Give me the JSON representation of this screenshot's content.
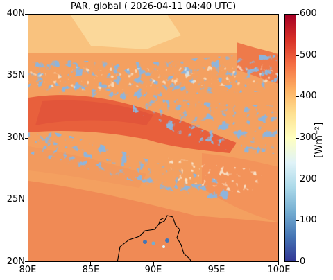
{
  "title": "PAR, global ( 2026-04-11 04:40 UTC)",
  "map": {
    "lat_labels": [
      "40N",
      "35N",
      "30N",
      "25N",
      "20N"
    ],
    "lat_values": [
      40,
      35,
      30,
      25,
      20
    ],
    "lon_labels": [
      "80E",
      "85E",
      "90E",
      "95E",
      "100E"
    ],
    "lon_values": [
      80,
      85,
      90,
      95,
      100
    ],
    "extent": {
      "lon_min": 80,
      "lon_max": 100,
      "lat_min": 20,
      "lat_max": 40
    }
  },
  "colorbar": {
    "label": "[Wm⁻²]",
    "ticks": [
      "600",
      "500",
      "400",
      "300",
      "200",
      "100",
      "0"
    ],
    "tick_values": [
      600,
      500,
      400,
      300,
      200,
      100,
      0
    ],
    "range": [
      0,
      600
    ],
    "colormap": "RdYlBu_r",
    "colors": [
      "#313695",
      "#4575b4",
      "#74add1",
      "#abd9e9",
      "#e0f3f8",
      "#ffffbf",
      "#fee090",
      "#fdae61",
      "#f46d43",
      "#d73027",
      "#a50026"
    ]
  }
}
